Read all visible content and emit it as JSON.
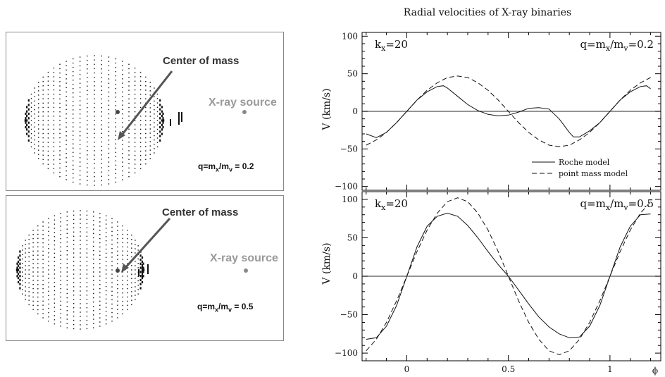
{
  "left_panels": [
    {
      "com_label": "Center of mass",
      "xray_label": "X-ray source",
      "q_text": {
        "pre": "q=m",
        "sub1": "x",
        "mid": "/m",
        "sub2": "v",
        "post": " = 0.2"
      }
    },
    {
      "com_label": "Center of mass",
      "xray_label": "X-ray source",
      "q_text": {
        "pre": "q=m",
        "sub1": "x",
        "mid": "/m",
        "sub2": "v",
        "post": " = 0.5"
      }
    }
  ],
  "chart_data": {
    "type": "line",
    "title": "Radial velocities of X-ray binaries",
    "xlabel": "ϕ",
    "ylabel": "V (km/s)",
    "xlim": [
      -0.22,
      1.25
    ],
    "xticks": [
      "0",
      "0.5",
      "1"
    ],
    "legend": {
      "placement": "bottom-right of top panel",
      "entries": [
        "Roche model",
        "point mass model"
      ]
    },
    "panels": [
      {
        "k_label": {
          "pre": "k",
          "sub": "x",
          "post": "=20"
        },
        "q_label": {
          "pre": "q=m",
          "sub1": "x",
          "mid": "/m",
          "sub2": "v",
          "post": "=0.2"
        },
        "ylim": [
          -105,
          105
        ],
        "yticks": [
          "100",
          "50",
          "0",
          "−50",
          "−100"
        ],
        "series": [
          {
            "name": "Roche model",
            "style": "solid",
            "x": [
              -0.2,
              -0.15,
              -0.1,
              -0.05,
              0,
              0.05,
              0.1,
              0.15,
              0.18,
              0.2,
              0.25,
              0.3,
              0.35,
              0.4,
              0.45,
              0.5,
              0.55,
              0.6,
              0.65,
              0.7,
              0.75,
              0.8,
              0.82,
              0.85,
              0.9,
              0.95,
              1,
              1.05,
              1.1,
              1.15,
              1.18,
              1.2
            ],
            "y": [
              -30,
              -35,
              -28,
              -15,
              0,
              15,
              26,
              33,
              34,
              31,
              20,
              9,
              1,
              -4,
              -6,
              -5,
              -1,
              4,
              5,
              3,
              -10,
              -28,
              -34,
              -34,
              -26,
              -15,
              0,
              15,
              26,
              33,
              34,
              30
            ]
          },
          {
            "name": "point mass model",
            "style": "dashed",
            "x": [
              -0.2,
              -0.15,
              -0.1,
              -0.05,
              0,
              0.05,
              0.1,
              0.15,
              0.2,
              0.25,
              0.3,
              0.35,
              0.4,
              0.45,
              0.5,
              0.55,
              0.6,
              0.65,
              0.7,
              0.75,
              0.8,
              0.85,
              0.9,
              0.95,
              1,
              1.05,
              1.1,
              1.15,
              1.2
            ],
            "y": [
              -45,
              -38,
              -28,
              -15,
              0,
              15,
              28,
              38,
              45,
              47,
              45,
              38,
              28,
              15,
              0,
              -15,
              -28,
              -38,
              -45,
              -47,
              -45,
              -38,
              -28,
              -15,
              0,
              15,
              28,
              38,
              45
            ]
          }
        ]
      },
      {
        "k_label": {
          "pre": "k",
          "sub": "x",
          "post": "=20"
        },
        "q_label": {
          "pre": "q=m",
          "sub1": "x",
          "mid": "/m",
          "sub2": "v",
          "post": "=0.5"
        },
        "ylim": [
          -110,
          110
        ],
        "yticks": [
          "100",
          "50",
          "0",
          "−50",
          "−100"
        ],
        "series": [
          {
            "name": "Roche model",
            "style": "solid",
            "x": [
              -0.2,
              -0.15,
              -0.1,
              -0.05,
              0,
              0.05,
              0.1,
              0.15,
              0.2,
              0.25,
              0.3,
              0.35,
              0.4,
              0.45,
              0.5,
              0.55,
              0.6,
              0.65,
              0.7,
              0.75,
              0.8,
              0.85,
              0.9,
              0.95,
              1,
              1.05,
              1.1,
              1.15,
              1.2
            ],
            "y": [
              -82,
              -80,
              -65,
              -38,
              0,
              38,
              65,
              78,
              82,
              78,
              66,
              50,
              32,
              15,
              0,
              -18,
              -36,
              -53,
              -66,
              -75,
              -80,
              -79,
              -65,
              -38,
              0,
              38,
              65,
              80,
              81
            ]
          },
          {
            "name": "point mass model",
            "style": "dashed",
            "x": [
              -0.2,
              -0.15,
              -0.1,
              -0.05,
              0,
              0.05,
              0.1,
              0.15,
              0.2,
              0.25,
              0.3,
              0.35,
              0.4,
              0.45,
              0.5,
              0.55,
              0.6,
              0.65,
              0.7,
              0.75,
              0.8,
              0.85,
              0.9,
              0.95,
              1,
              1.05,
              1.1,
              1.15,
              1.2
            ],
            "y": [
              -97,
              -82,
              -60,
              -32,
              0,
              32,
              60,
              82,
              97,
              102,
              97,
              82,
              60,
              32,
              0,
              -32,
              -60,
              -82,
              -97,
              -102,
              -97,
              -82,
              -60,
              -32,
              0,
              32,
              60,
              82,
              97
            ]
          }
        ]
      }
    ]
  }
}
